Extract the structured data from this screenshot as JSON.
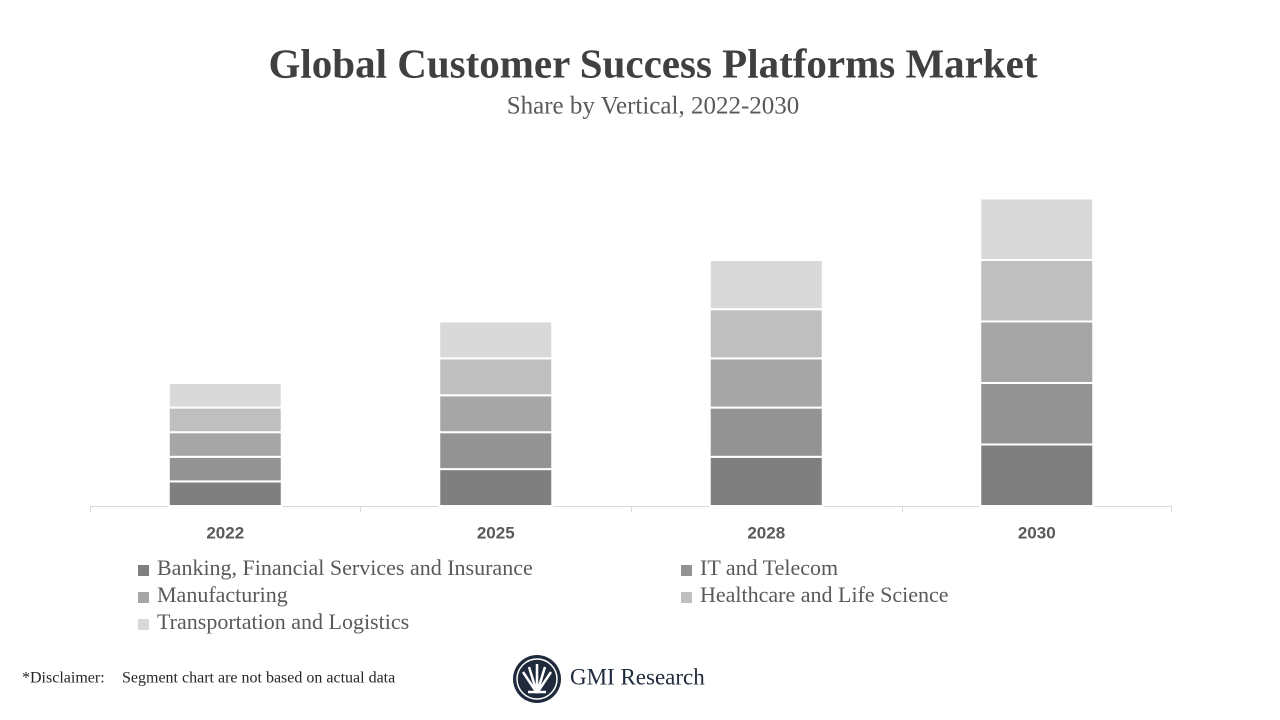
{
  "chart_data": {
    "type": "stacked_bar",
    "title": "Global Customer Success Platforms Market",
    "subtitle": "Share by Vertical, 2022-2030",
    "categories": [
      "2022",
      "2025",
      "2028",
      "2030"
    ],
    "series": [
      {
        "name": "Banking, Financial Services and Insurance",
        "color": "#7f7f7f",
        "values": [
          4,
          6,
          8,
          10
        ]
      },
      {
        "name": "IT and Telecom",
        "color": "#939393",
        "values": [
          4,
          6,
          8,
          10
        ]
      },
      {
        "name": "Manufacturing",
        "color": "#a6a6a6",
        "values": [
          4,
          6,
          8,
          10
        ]
      },
      {
        "name": "Healthcare and Life Science",
        "color": "#bfbfbf",
        "values": [
          4,
          6,
          8,
          10
        ]
      },
      {
        "name": "Transportation and Logistics",
        "color": "#d9d9d9",
        "values": [
          4,
          6,
          8,
          10
        ]
      }
    ],
    "ylim": [
      0,
      50
    ],
    "disclaimer": {
      "label": "*Disclaimer:",
      "text": "Segment chart are not based on actual data"
    },
    "brand": "GMI Research"
  }
}
